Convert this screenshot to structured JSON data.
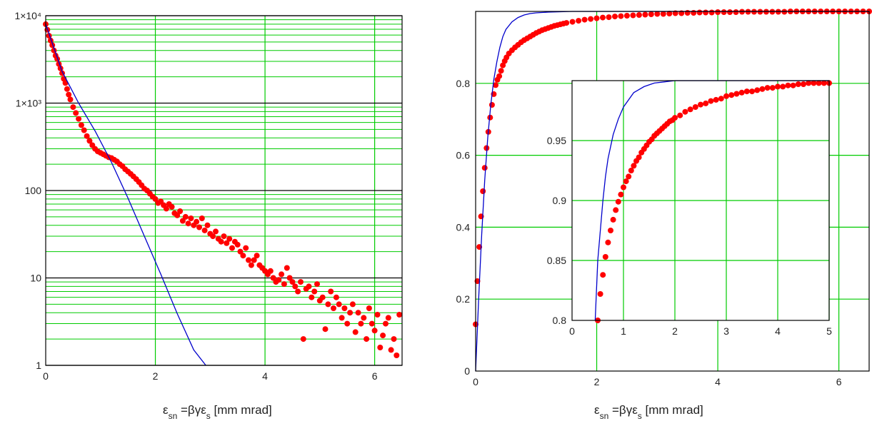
{
  "chart_data": [
    {
      "type": "scatter",
      "y_scale": "log",
      "xlim": [
        0,
        6.5
      ],
      "ylim": [
        1,
        10000
      ],
      "x_ticks": [
        "0",
        "2",
        "4",
        "6"
      ],
      "y_ticks": [
        "1",
        "10",
        "100",
        "1×10³",
        "1×10⁴"
      ],
      "xlabel": {
        "main": "ε",
        "sub": "sn",
        "mid": " =βγε",
        "sub2": "s",
        "tail": " [mm mrad]"
      },
      "grid": true,
      "colors": {
        "points": "#ff0000",
        "line": "#0000cc",
        "major_grid": "#000000",
        "minor_grid": "#00cc00"
      },
      "series": [
        {
          "kind": "points",
          "x": [
            0,
            0.03,
            0.06,
            0.09,
            0.12,
            0.15,
            0.18,
            0.21,
            0.24,
            0.27,
            0.3,
            0.33,
            0.36,
            0.39,
            0.42,
            0.45,
            0.5,
            0.55,
            0.6,
            0.65,
            0.7,
            0.75,
            0.8,
            0.85,
            0.9,
            0.95,
            1.0,
            1.05,
            1.1,
            1.15,
            1.2,
            1.25,
            1.3,
            1.35,
            1.4,
            1.45,
            1.5,
            1.55,
            1.6,
            1.65,
            1.7,
            1.75,
            1.8,
            1.85,
            1.9,
            1.95,
            2.0,
            2.05,
            2.1,
            2.15,
            2.2,
            2.25,
            2.3,
            2.35,
            2.4,
            2.45,
            2.5,
            2.55,
            2.6,
            2.65,
            2.7,
            2.75,
            2.8,
            2.85,
            2.9,
            2.95,
            3.0,
            3.05,
            3.1,
            3.15,
            3.2,
            3.25,
            3.3,
            3.35,
            3.4,
            3.45,
            3.5,
            3.55,
            3.6,
            3.65,
            3.7,
            3.75,
            3.8,
            3.85,
            3.9,
            3.95,
            4.0,
            4.05,
            4.1,
            4.15,
            4.2,
            4.25,
            4.3,
            4.35,
            4.4,
            4.45,
            4.5,
            4.55,
            4.6,
            4.65,
            4.7,
            4.75,
            4.8,
            4.85,
            4.9,
            4.95,
            5.0,
            5.05,
            5.1,
            5.15,
            5.2,
            5.25,
            5.3,
            5.35,
            5.4,
            5.45,
            5.5,
            5.55,
            5.6,
            5.65,
            5.7,
            5.75,
            5.8,
            5.85,
            5.9,
            5.95,
            6.0,
            6.05,
            6.1,
            6.15,
            6.2,
            6.25,
            6.3,
            6.35,
            6.4,
            6.45
          ],
          "y": [
            8000,
            6900,
            5900,
            5200,
            4600,
            4000,
            3500,
            3200,
            2800,
            2500,
            2200,
            1900,
            1700,
            1450,
            1250,
            1100,
            900,
            770,
            660,
            560,
            490,
            420,
            370,
            330,
            300,
            280,
            270,
            260,
            250,
            240,
            235,
            225,
            215,
            200,
            190,
            175,
            165,
            155,
            145,
            135,
            125,
            115,
            105,
            100,
            92,
            85,
            80,
            72,
            75,
            68,
            62,
            70,
            65,
            55,
            52,
            58,
            45,
            50,
            42,
            48,
            40,
            44,
            38,
            48,
            35,
            40,
            32,
            30,
            34,
            28,
            26,
            30,
            25,
            28,
            22,
            26,
            24,
            20,
            18,
            22,
            16,
            14,
            16,
            18,
            14,
            13,
            12,
            11,
            12,
            10,
            9,
            9.5,
            11,
            8.5,
            13,
            10,
            9,
            8,
            7,
            9,
            2,
            7.5,
            8,
            6,
            7,
            8.5,
            5.5,
            6,
            2.6,
            5,
            7,
            4.5,
            6,
            5,
            3.5,
            4.5,
            3,
            4,
            5,
            2.4,
            4,
            3,
            3.5,
            2,
            4.5,
            3,
            2.5,
            3.8,
            1.6,
            2.2,
            3,
            3.5,
            1.5,
            2,
            1.3,
            3.8
          ],
          "name": ""
        },
        {
          "kind": "line",
          "x": [
            0,
            0.3,
            0.6,
            0.9,
            1.2,
            1.5,
            1.8,
            2.1,
            2.4,
            2.7,
            2.92
          ],
          "y": [
            8000,
            2300,
            1000,
            480,
            210,
            82,
            30,
            11,
            3.9,
            1.5,
            1
          ],
          "name": ""
        }
      ]
    },
    {
      "type": "line",
      "xlim": [
        0,
        6.5
      ],
      "ylim": [
        0,
        1
      ],
      "x_ticks": [
        "0",
        "2",
        "4",
        "6"
      ],
      "y_ticks": [
        "0",
        "0.2",
        "0.4",
        "0.6",
        "0.8"
      ],
      "xlabel": {
        "main": "ε",
        "sub": "sn",
        "mid": " =βγε",
        "sub2": "s",
        "tail": " [mm mrad]"
      },
      "grid": true,
      "colors": {
        "points": "#ff0000",
        "line": "#0000cc",
        "grid": "#00cc00"
      },
      "series": [
        {
          "kind": "line",
          "x": [
            0,
            0.05,
            0.1,
            0.15,
            0.2,
            0.25,
            0.3,
            0.35,
            0.4,
            0.45,
            0.5,
            0.6,
            0.7,
            0.8,
            0.9,
            1.0,
            1.2,
            1.4,
            1.6,
            2.0,
            2.5,
            3.0,
            4.0,
            5.0,
            6.5
          ],
          "y": [
            0,
            0.2,
            0.38,
            0.53,
            0.65,
            0.74,
            0.81,
            0.86,
            0.9,
            0.93,
            0.95,
            0.971,
            0.983,
            0.99,
            0.994,
            0.996,
            0.998,
            0.999,
            1.0,
            1.0,
            1.0,
            1.0,
            1.0,
            1.0,
            1.0
          ],
          "name": ""
        },
        {
          "kind": "points",
          "x": [
            0,
            0.03,
            0.06,
            0.09,
            0.12,
            0.15,
            0.18,
            0.21,
            0.24,
            0.27,
            0.3,
            0.33,
            0.36,
            0.39,
            0.42,
            0.45,
            0.48,
            0.51,
            0.55,
            0.6,
            0.65,
            0.7,
            0.75,
            0.8,
            0.85,
            0.9,
            0.95,
            1.0,
            1.05,
            1.1,
            1.15,
            1.2,
            1.25,
            1.3,
            1.35,
            1.4,
            1.45,
            1.5,
            1.6,
            1.7,
            1.8,
            1.9,
            2.0,
            2.1,
            2.2,
            2.3,
            2.4,
            2.5,
            2.6,
            2.7,
            2.8,
            2.9,
            3.0,
            3.1,
            3.2,
            3.3,
            3.4,
            3.5,
            3.6,
            3.7,
            3.8,
            3.9,
            4.0,
            4.1,
            4.2,
            4.3,
            4.4,
            4.5,
            4.6,
            4.7,
            4.8,
            4.9,
            5.0,
            5.1,
            5.2,
            5.3,
            5.4,
            5.5,
            5.6,
            5.7,
            5.8,
            5.9,
            6.0,
            6.1,
            6.2,
            6.3,
            6.4,
            6.5
          ],
          "y": [
            0.13,
            0.25,
            0.345,
            0.43,
            0.5,
            0.565,
            0.62,
            0.665,
            0.705,
            0.74,
            0.77,
            0.795,
            0.81,
            0.82,
            0.835,
            0.85,
            0.862,
            0.872,
            0.883,
            0.892,
            0.9,
            0.907,
            0.914,
            0.92,
            0.925,
            0.93,
            0.935,
            0.94,
            0.944,
            0.948,
            0.951,
            0.954,
            0.957,
            0.96,
            0.962,
            0.964,
            0.966,
            0.968,
            0.971,
            0.974,
            0.977,
            0.979,
            0.981,
            0.983,
            0.984,
            0.986,
            0.987,
            0.988,
            0.989,
            0.99,
            0.991,
            0.992,
            0.993,
            0.993,
            0.994,
            0.995,
            0.995,
            0.996,
            0.996,
            0.997,
            0.997,
            0.997,
            0.998,
            0.998,
            0.998,
            0.998,
            0.999,
            0.999,
            0.999,
            0.999,
            0.999,
            0.999,
            0.999,
            0.999,
            1.0,
            1.0,
            1.0,
            1.0,
            1.0,
            1.0,
            1.0,
            1.0,
            1.0,
            1.0,
            1.0,
            1.0,
            1.0,
            1.0
          ],
          "name": ""
        }
      ]
    },
    {
      "type": "line",
      "role": "inset",
      "xlim": [
        0,
        5
      ],
      "ylim": [
        0.8,
        1.0
      ],
      "x_ticks": [
        "0",
        "1",
        "2",
        "3",
        "4",
        "5"
      ],
      "y_ticks": [
        "0.8",
        "0.85",
        "0.9",
        "0.95"
      ],
      "grid": true,
      "colors": {
        "points": "#ff0000",
        "line": "#0000cc",
        "grid": "#00cc00"
      },
      "series": [
        {
          "kind": "line",
          "x": [
            0.45,
            0.5,
            0.55,
            0.6,
            0.65,
            0.7,
            0.8,
            0.9,
            1.0,
            1.2,
            1.4,
            1.6,
            1.8,
            2.0,
            2.5,
            5.0
          ],
          "y": [
            0.8,
            0.85,
            0.875,
            0.9,
            0.92,
            0.935,
            0.955,
            0.968,
            0.978,
            0.99,
            0.995,
            0.998,
            0.999,
            1.0,
            1.0,
            1.0
          ],
          "name": ""
        },
        {
          "kind": "points",
          "x": [
            0.5,
            0.55,
            0.6,
            0.65,
            0.7,
            0.75,
            0.8,
            0.85,
            0.9,
            0.95,
            1.0,
            1.05,
            1.1,
            1.15,
            1.2,
            1.25,
            1.3,
            1.35,
            1.4,
            1.45,
            1.5,
            1.55,
            1.6,
            1.65,
            1.7,
            1.75,
            1.8,
            1.85,
            1.9,
            1.95,
            2.0,
            2.1,
            2.2,
            2.3,
            2.4,
            2.5,
            2.6,
            2.7,
            2.8,
            2.9,
            3.0,
            3.1,
            3.2,
            3.3,
            3.4,
            3.5,
            3.6,
            3.7,
            3.8,
            3.9,
            4.0,
            4.1,
            4.2,
            4.3,
            4.4,
            4.5,
            4.6,
            4.7,
            4.8,
            4.9,
            5.0
          ],
          "y": [
            0.8,
            0.822,
            0.838,
            0.853,
            0.865,
            0.875,
            0.884,
            0.892,
            0.899,
            0.905,
            0.911,
            0.916,
            0.92,
            0.925,
            0.929,
            0.933,
            0.936,
            0.94,
            0.943,
            0.946,
            0.949,
            0.951,
            0.954,
            0.956,
            0.958,
            0.96,
            0.962,
            0.964,
            0.966,
            0.967,
            0.969,
            0.971,
            0.974,
            0.976,
            0.978,
            0.98,
            0.981,
            0.983,
            0.984,
            0.985,
            0.987,
            0.988,
            0.989,
            0.99,
            0.991,
            0.991,
            0.992,
            0.993,
            0.994,
            0.994,
            0.995,
            0.995,
            0.996,
            0.996,
            0.997,
            0.997,
            0.998,
            0.998,
            0.998,
            0.998,
            0.998
          ],
          "name": ""
        }
      ]
    }
  ]
}
